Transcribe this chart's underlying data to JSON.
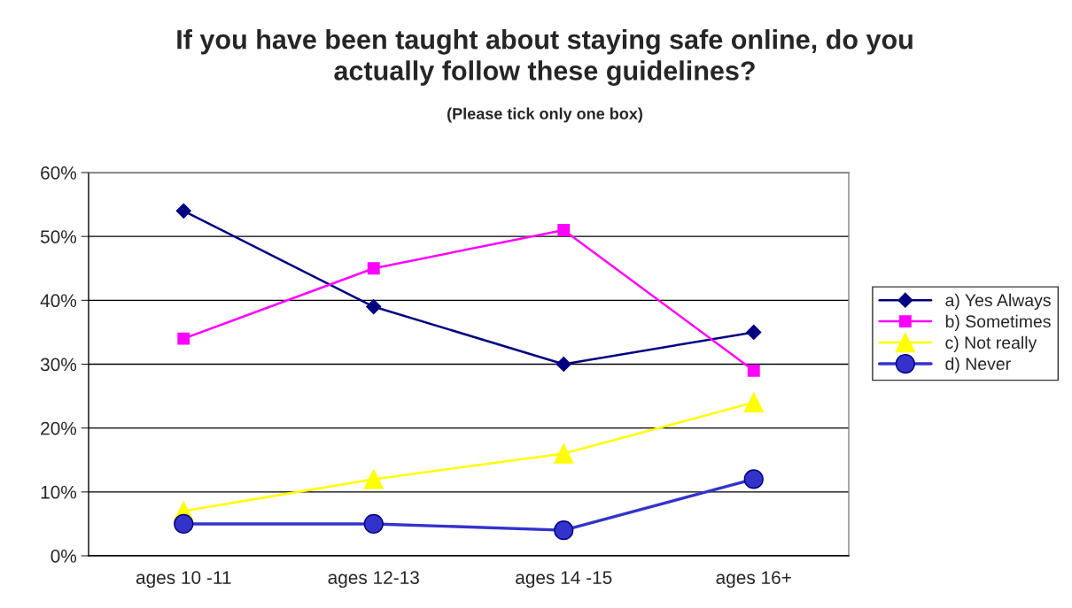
{
  "chart_data": {
    "type": "line",
    "title": "If you have been taught about staying safe online, do you\nactually follow these guidelines?",
    "subtitle": "(Please tick only one box)",
    "categories": [
      "ages 10 -11",
      "ages 12-13",
      "ages 14 -15",
      "ages 16+"
    ],
    "series": [
      {
        "name": "a) Yes Always",
        "color": "#000080",
        "marker": "diamond",
        "values": [
          54,
          39,
          30,
          35
        ]
      },
      {
        "name": "b) Sometimes",
        "color": "#ff00ff",
        "marker": "square",
        "values": [
          34,
          45,
          51,
          29
        ]
      },
      {
        "name": "c) Not really",
        "color": "#ffff00",
        "marker": "triangle",
        "values": [
          7,
          12,
          16,
          24
        ]
      },
      {
        "name": "d) Never",
        "color": "#3333cc",
        "marker": "circle",
        "values": [
          5,
          5,
          4,
          12
        ]
      }
    ],
    "ylim": [
      0,
      60
    ],
    "yticks": [
      {
        "value": 0,
        "label": "0%"
      },
      {
        "value": 10,
        "label": "10%"
      },
      {
        "value": 20,
        "label": "20%"
      },
      {
        "value": 30,
        "label": "30%"
      },
      {
        "value": 40,
        "label": "40%"
      },
      {
        "value": 50,
        "label": "50%"
      },
      {
        "value": 60,
        "label": "60%"
      }
    ],
    "grid": "y",
    "legend": "right",
    "line_style": "solid"
  }
}
